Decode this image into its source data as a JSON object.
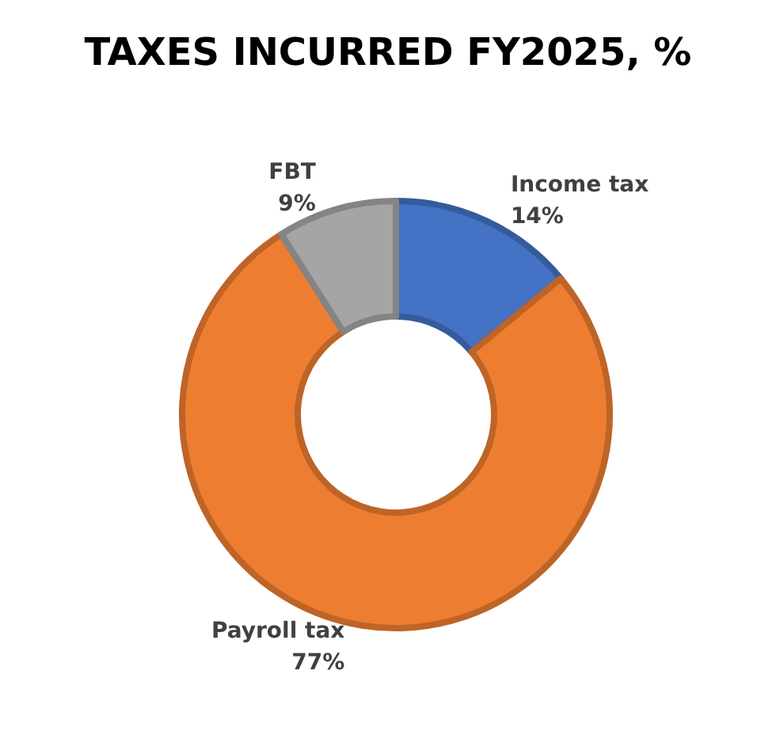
{
  "chart_data": {
    "type": "donut",
    "title": "TAXES INCURRED FY2025, %",
    "categories": [
      "Income tax",
      "Payroll tax",
      "FBT"
    ],
    "values": [
      14,
      77,
      9
    ],
    "value_labels": [
      "14%",
      "77%",
      "9%"
    ],
    "colors": [
      "#4472c4",
      "#ed7d31",
      "#a5a5a5"
    ]
  }
}
